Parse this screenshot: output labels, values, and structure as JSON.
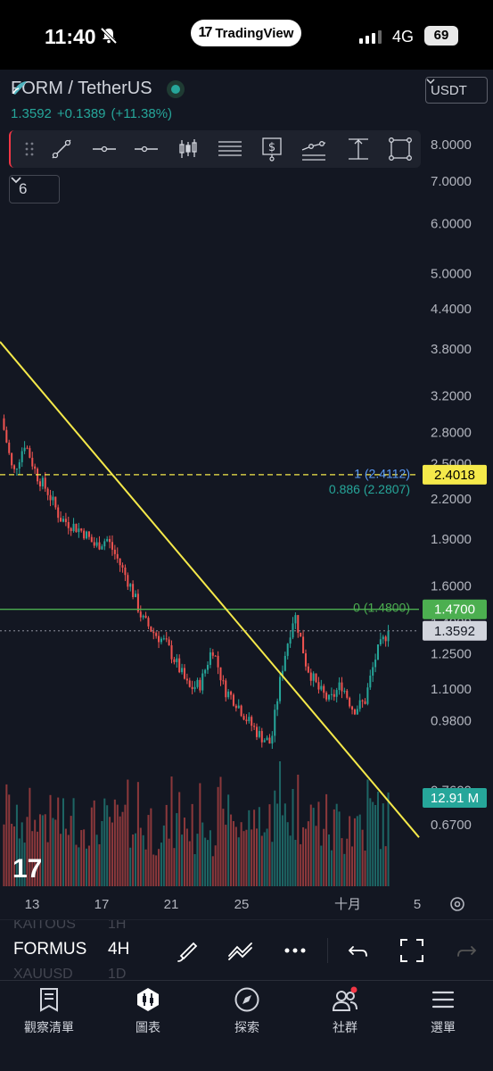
{
  "status_bar": {
    "time": "11:40",
    "app_pill": "TradingView",
    "app_pill_logo": "17",
    "network": "4G",
    "battery": "69"
  },
  "header": {
    "symbol": "FORM / TetherUS",
    "last_price": "1.3592",
    "change": "+0.1389",
    "change_pct": "(+11.38%)",
    "currency_button": "USDT",
    "hidden_indicators_count": "6"
  },
  "colors": {
    "up": "#26a69a",
    "down": "#ef5350",
    "trendline": "#f5e94a",
    "fib_line": "#4caf50",
    "background": "#131722"
  },
  "drawing_toolbar": {
    "tools": [
      "drag-handle-icon",
      "trendline-tool-icon",
      "horizontal-line-tool-icon",
      "horizontal-ray-tool-icon",
      "long-position-tool-icon",
      "fib-retracement-tool-icon",
      "price-label-tool-icon",
      "parallel-channel-tool-icon",
      "price-range-tool-icon",
      "rectangle-tool-icon"
    ]
  },
  "chart_data": {
    "type": "candlestick",
    "symbol": "FORM / TetherUS",
    "interval": "4H",
    "scale": "log",
    "ylim": [
      0.6,
      8.6
    ],
    "y_ticks": [
      "8.0000",
      "7.0000",
      "6.0000",
      "5.0000",
      "4.4000",
      "3.8000",
      "3.2000",
      "2.8000",
      "2.5000",
      "2.2000",
      "1.9000",
      "1.6000",
      "1.4000",
      "1.2500",
      "1.1000",
      "0.9800",
      "0.7600",
      "0.6700"
    ],
    "x_ticks": [
      "13",
      "17",
      "21",
      "25",
      "十月",
      "5"
    ],
    "close_path": [
      2.95,
      2.4,
      2.7,
      2.4,
      2.25,
      2.05,
      2.0,
      1.95,
      1.85,
      1.9,
      1.75,
      1.6,
      1.42,
      1.35,
      1.3,
      1.2,
      1.1,
      1.12,
      1.28,
      1.1,
      1.05,
      0.98,
      0.93,
      0.9,
      1.2,
      1.45,
      1.2,
      1.1,
      1.05,
      1.12,
      1.02,
      1.05,
      1.25,
      1.36
    ],
    "price_labels": [
      {
        "text": "2.4018",
        "value": 2.4018,
        "style": "yellow"
      },
      {
        "text": "1.4700",
        "value": 1.47,
        "style": "green"
      },
      {
        "text": "1.3592",
        "value": 1.3592,
        "style": "gray"
      },
      {
        "text": "12.91 M",
        "value": 12.91,
        "style": "teal"
      }
    ],
    "fib_levels": [
      {
        "label": "1 (2.4112)",
        "level": 1,
        "price": 2.4112
      },
      {
        "label": "0.886 (2.2807)",
        "level": 0.886,
        "price": 2.2807
      },
      {
        "label": "0 (1.4800)",
        "level": 0,
        "price": 1.48
      }
    ],
    "horizontal_lines": [
      {
        "price": 2.4018,
        "color": "#f5e94a",
        "style": "dashed"
      },
      {
        "price": 1.47,
        "color": "#4caf50",
        "style": "solid"
      },
      {
        "price": 1.3592,
        "color": "#787b86",
        "style": "dotted"
      }
    ],
    "trendline": {
      "from_price": 3.9,
      "to_price": 0.64,
      "color": "#f5e94a"
    },
    "volume_label": "12.91 M",
    "grid": false
  },
  "timeframe_bar": {
    "symbol": "FORMUS",
    "interval": "4H",
    "ghost_above": [
      "KAITOUS",
      "1H"
    ],
    "ghost_below": [
      "XAUUSD",
      "1D"
    ]
  },
  "bottom_nav": [
    {
      "label": "觀察清單",
      "icon": "watchlist-icon"
    },
    {
      "label": "圖表",
      "icon": "chart-icon"
    },
    {
      "label": "探索",
      "icon": "compass-icon"
    },
    {
      "label": "社群",
      "icon": "community-icon"
    },
    {
      "label": "選單",
      "icon": "menu-icon"
    }
  ]
}
